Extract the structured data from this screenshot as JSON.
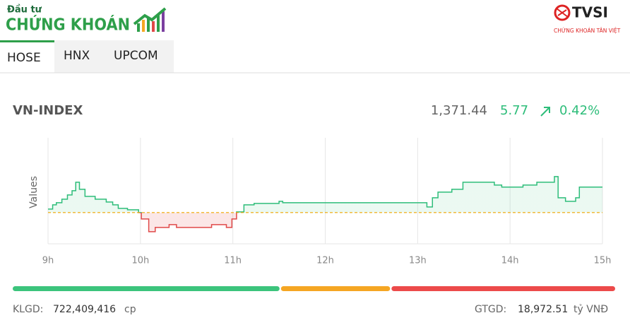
{
  "brand": {
    "top": "Đầu tư",
    "main": "CHỨNG KHOÁN",
    "partner": "TVSI",
    "partner_sub": "CHỨNG KHOÁN TÂN VIỆT"
  },
  "tabs": [
    "HOSE",
    "HNX",
    "UPCOM"
  ],
  "index": {
    "name": "VN-INDEX",
    "value": "1,371.44",
    "change": "5.77",
    "percent": "0.42%"
  },
  "chart_data": {
    "type": "line",
    "y_label": "Values",
    "x": [
      9.0,
      9.05,
      9.09,
      9.15,
      9.21,
      9.26,
      9.3,
      9.34,
      9.4,
      9.51,
      9.63,
      9.7,
      9.76,
      9.86,
      9.98,
      10.01,
      10.09,
      10.16,
      10.31,
      10.39,
      10.77,
      10.93,
      10.99,
      11.04,
      11.12,
      11.23,
      11.5,
      11.54,
      13.07,
      13.1,
      13.16,
      13.22,
      13.37,
      13.49,
      13.68,
      13.83,
      13.91,
      14.14,
      14.29,
      14.48,
      14.52,
      14.6,
      14.71,
      14.75,
      15.0
    ],
    "values": [
      1366.47,
      1367.43,
      1367.91,
      1368.71,
      1369.67,
      1370.63,
      1372.55,
      1370.95,
      1369.35,
      1368.71,
      1368.07,
      1367.43,
      1366.63,
      1366.31,
      1365.67,
      1364.23,
      1361.35,
      1362.31,
      1362.95,
      1362.31,
      1362.95,
      1362.31,
      1364.23,
      1365.83,
      1367.43,
      1367.75,
      1368.23,
      1367.91,
      1367.91,
      1366.95,
      1369.03,
      1370.31,
      1370.95,
      1372.55,
      1372.55,
      1371.91,
      1371.44,
      1371.91,
      1372.55,
      1373.83,
      1369.03,
      1368.23,
      1369.03,
      1371.44,
      1371.44
    ],
    "reference": 1365.67,
    "color": "#2ebd7a",
    "down_color": "#e04848",
    "reference_color": "#f0a500",
    "xlim": [
      9,
      15
    ],
    "ylim": [
      1358.6,
      1382.6
    ],
    "xticks": [
      {
        "value": 9,
        "label": "9h"
      },
      {
        "value": 10,
        "label": "10h"
      },
      {
        "value": 11,
        "label": "11h"
      },
      {
        "value": 12,
        "label": "12h"
      },
      {
        "value": 13,
        "label": "13h"
      },
      {
        "value": 14,
        "label": "14h"
      },
      {
        "value": 15,
        "label": "15h"
      }
    ],
    "grid": true
  },
  "breadth": {
    "values": [
      44.5,
      18.2,
      37.3
    ],
    "colors": [
      "#3cc47c",
      "#f5a623",
      "#ec4a4a"
    ]
  },
  "footer": {
    "klgd_label": "KLGD:",
    "klgd": "722,409,416",
    "klgd_unit": "cp",
    "gtgd_label": "GTGD:",
    "gtgd": "18,972.51",
    "gtgd_unit": "tỷ VNĐ"
  }
}
